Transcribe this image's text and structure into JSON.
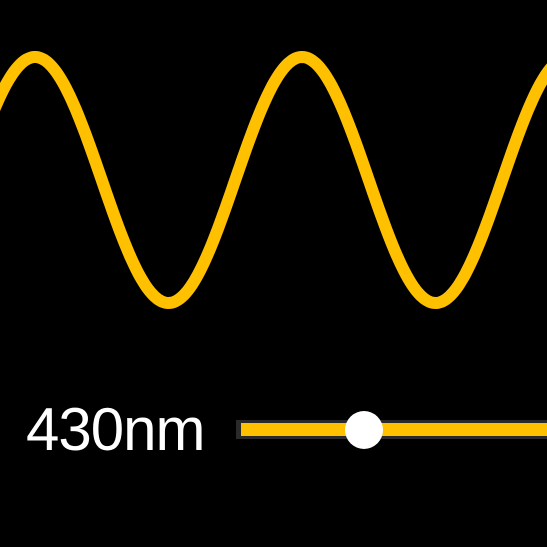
{
  "wavelength": {
    "label": "430nm",
    "slider_position": 0.41
  },
  "colors": {
    "background": "#000000",
    "wave": "#FFC000",
    "slider_fill": "#FFC000",
    "slider_track": "#2a2a2a",
    "thumb": "#ffffff",
    "label": "#ffffff"
  },
  "icons": {
    "wave": "sine-wave-icon",
    "thumb": "slider-thumb-icon"
  }
}
